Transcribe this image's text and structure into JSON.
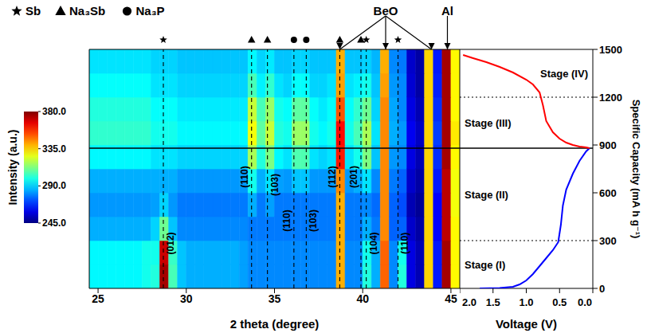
{
  "chart_data": [
    {
      "type": "heatmap",
      "x_label": "2 theta (degree)",
      "xlim": [
        24.5,
        45.5
      ],
      "xticks": [
        25,
        30,
        35,
        40,
        45
      ],
      "ylim": [
        0,
        1500
      ],
      "tick_labels": "x",
      "x_bins": [
        24.5,
        25,
        25.5,
        26,
        26.5,
        27,
        27.5,
        28,
        28.5,
        29,
        29.5,
        30,
        30.5,
        31,
        31.5,
        32,
        32.5,
        33,
        33.5,
        34,
        34.5,
        35,
        35.5,
        36,
        36.5,
        37,
        37.5,
        38,
        38.5,
        39,
        39.5,
        40,
        40.5,
        41,
        41.5,
        42,
        42.5,
        43,
        43.5,
        44,
        44.5,
        45,
        45.5
      ],
      "y_bins": [
        0,
        150,
        300,
        450,
        600,
        750,
        900,
        1050,
        1200,
        1350,
        1500
      ],
      "cells": [
        [
          295,
          295,
          295,
          295,
          295,
          295,
          298,
          300,
          375,
          305,
          288,
          285,
          285,
          285,
          285,
          285,
          285,
          283,
          280,
          280,
          280,
          280,
          280,
          280,
          280,
          280,
          280,
          280,
          340,
          280,
          280,
          300,
          285,
          350,
          280,
          300,
          258,
          252,
          335,
          265,
          375,
          330
        ],
        [
          295,
          295,
          295,
          295,
          295,
          295,
          298,
          298,
          370,
          303,
          288,
          285,
          285,
          285,
          285,
          285,
          285,
          283,
          280,
          280,
          280,
          280,
          280,
          280,
          280,
          280,
          280,
          280,
          340,
          280,
          280,
          298,
          285,
          350,
          280,
          298,
          258,
          252,
          335,
          265,
          375,
          330
        ],
        [
          285,
          285,
          285,
          285,
          285,
          285,
          285,
          290,
          310,
          288,
          280,
          280,
          280,
          280,
          280,
          280,
          280,
          280,
          278,
          278,
          278,
          278,
          278,
          278,
          278,
          278,
          278,
          278,
          340,
          278,
          278,
          285,
          278,
          345,
          275,
          275,
          255,
          250,
          335,
          262,
          372,
          330
        ],
        [
          282,
          282,
          282,
          282,
          282,
          282,
          282,
          283,
          290,
          282,
          278,
          278,
          278,
          278,
          278,
          278,
          278,
          278,
          285,
          278,
          283,
          278,
          278,
          278,
          278,
          278,
          278,
          278,
          340,
          278,
          278,
          280,
          276,
          345,
          275,
          272,
          252,
          248,
          335,
          262,
          372,
          328
        ],
        [
          285,
          285,
          285,
          285,
          285,
          285,
          285,
          285,
          285,
          285,
          282,
          282,
          282,
          282,
          282,
          282,
          282,
          282,
          298,
          285,
          292,
          283,
          282,
          288,
          288,
          282,
          282,
          282,
          345,
          282,
          285,
          292,
          280,
          345,
          278,
          275,
          255,
          250,
          335,
          265,
          372,
          328
        ],
        [
          295,
          295,
          295,
          295,
          295,
          295,
          295,
          292,
          292,
          292,
          290,
          290,
          290,
          290,
          290,
          290,
          290,
          290,
          318,
          300,
          312,
          295,
          292,
          306,
          306,
          292,
          290,
          292,
          360,
          292,
          298,
          312,
          288,
          345,
          282,
          280,
          258,
          252,
          335,
          268,
          375,
          330
        ],
        [
          302,
          302,
          302,
          302,
          302,
          302,
          302,
          298,
          298,
          298,
          295,
          295,
          295,
          295,
          295,
          295,
          295,
          295,
          328,
          308,
          322,
          300,
          298,
          316,
          316,
          298,
          295,
          298,
          362,
          298,
          305,
          318,
          292,
          345,
          285,
          282,
          260,
          254,
          335,
          270,
          375,
          332
        ],
        [
          300,
          300,
          300,
          300,
          300,
          300,
          300,
          296,
          296,
          296,
          293,
          293,
          293,
          293,
          293,
          293,
          293,
          293,
          322,
          305,
          316,
          298,
          296,
          308,
          308,
          296,
          293,
          296,
          352,
          296,
          302,
          310,
          290,
          345,
          284,
          280,
          258,
          252,
          335,
          268,
          375,
          330
        ],
        [
          296,
          296,
          296,
          296,
          296,
          296,
          296,
          292,
          292,
          292,
          290,
          290,
          290,
          290,
          290,
          290,
          290,
          290,
          305,
          294,
          302,
          292,
          290,
          296,
          296,
          290,
          290,
          292,
          342,
          292,
          294,
          298,
          288,
          342,
          282,
          280,
          256,
          250,
          335,
          266,
          375,
          330
        ],
        [
          292,
          292,
          292,
          292,
          292,
          292,
          292,
          290,
          290,
          290,
          288,
          288,
          288,
          288,
          288,
          288,
          288,
          288,
          295,
          290,
          293,
          288,
          288,
          290,
          290,
          288,
          288,
          288,
          340,
          288,
          288,
          290,
          286,
          340,
          280,
          278,
          255,
          250,
          335,
          265,
          375,
          330
        ]
      ],
      "colorbar": {
        "label": "Intensity (a.u.)",
        "range": [
          245,
          380
        ],
        "ticks": [
          {
            "value": 245,
            "label": "245.0"
          },
          {
            "value": 290,
            "label": "290.0"
          },
          {
            "value": 335,
            "label": "335.0"
          },
          {
            "value": 380,
            "label": "380.0"
          }
        ]
      },
      "phases": [
        {
          "name": "Sb",
          "marker": "star"
        },
        {
          "name": "Na₃Sb",
          "marker": "triangle"
        },
        {
          "name": "Na₃P",
          "marker": "circle"
        }
      ],
      "reflections": [
        {
          "phase": "Sb",
          "x": 28.7,
          "label": "(012)",
          "y": 283
        },
        {
          "phase": "Na₃Sb",
          "x": 33.7,
          "label": "(110)",
          "y": 700
        },
        {
          "phase": "Na₃Sb",
          "x": 34.6,
          "label": "(103)",
          "y": 650
        },
        {
          "phase": "Na₃P",
          "x": 36.1,
          "label": "(110)",
          "y": 425
        },
        {
          "phase": "Na₃P",
          "x": 36.8,
          "label": "(103)",
          "y": 425
        },
        {
          "phase": "Na₃Sb",
          "x": 38.7,
          "label": "(112)",
          "y": 700
        },
        {
          "phase": "Na₃Sb",
          "x": 39.9,
          "label": "(201)",
          "y": 700
        },
        {
          "phase": "Sb",
          "x": 40.2,
          "label": "(104)",
          "y": 283
        },
        {
          "phase": "Sb",
          "x": 42.0,
          "label": "(110)",
          "y": 283
        }
      ],
      "indicators": [
        {
          "label": "BeO",
          "x": [
            38.7,
            41.3,
            43.9
          ]
        },
        {
          "label": "Al",
          "x": [
            44.8
          ]
        }
      ]
    },
    {
      "type": "line",
      "x_label": "Voltage (V)",
      "y_label": "Specific Capacity (mA h g⁻¹)",
      "xlim": [
        2.0,
        0.0
      ],
      "xticks": [
        {
          "value": 2,
          "label": "2.0"
        },
        1.5,
        {
          "value": 1,
          "label": "1.0"
        },
        0.5,
        {
          "value": 0,
          "label": "0.0"
        }
      ],
      "ylim": [
        0,
        1500
      ],
      "yticks": [
        0,
        300,
        600,
        900,
        1200,
        1500
      ],
      "series": [
        {
          "color": "#0000ff",
          "x": [
            1.7,
            1.4,
            1.2,
            1.1,
            1.0,
            0.9,
            0.8,
            0.7,
            0.6,
            0.52,
            0.48,
            0.45,
            0.4,
            0.3,
            0.2,
            0.1,
            0.05
          ],
          "values": [
            0,
            2,
            10,
            25,
            50,
            90,
            140,
            190,
            240,
            290,
            400,
            520,
            620,
            720,
            800,
            860,
            880
          ]
        },
        {
          "color": "#ff0000",
          "x": [
            0.05,
            0.1,
            0.2,
            0.3,
            0.4,
            0.5,
            0.6,
            0.7,
            0.75,
            0.8,
            0.9,
            1.0,
            1.2,
            1.4,
            1.6,
            1.8,
            1.95
          ],
          "values": [
            880,
            885,
            890,
            900,
            915,
            940,
            980,
            1050,
            1150,
            1230,
            1280,
            1310,
            1355,
            1390,
            1420,
            1445,
            1465
          ]
        }
      ],
      "stages": [
        {
          "label": "Stage (I)",
          "from": 0,
          "to": 300
        },
        {
          "label": "Stage (II)",
          "from": 300,
          "to": 880,
          "line_style": "dotted"
        },
        {
          "label": "Stage (III)",
          "from": 880,
          "to": 1200,
          "line_style": "solid"
        },
        {
          "label": "Stage (IV)",
          "from": 1200,
          "to": 1500,
          "line_style": "dotted"
        }
      ]
    }
  ]
}
